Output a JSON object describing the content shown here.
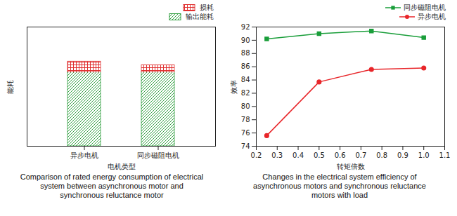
{
  "chart_data": [
    {
      "type": "bar",
      "stacked": true,
      "title": "Comparison of rated energy consumption of electrical system between asynchronous motor and synchronous reluctance motor",
      "xlabel": "电机类型",
      "ylabel": "能耗",
      "categories": [
        "异步电机",
        "同步磁阻电机"
      ],
      "series": [
        {
          "name": "输出能耗",
          "color": "#2e9e3e",
          "values": [
            62,
            62
          ]
        },
        {
          "name": "损耗",
          "color": "#e03030",
          "values": [
            9,
            6
          ]
        }
      ],
      "ylim": [
        0,
        100
      ],
      "tick_labels": "x",
      "legend": "top-right"
    },
    {
      "type": "line",
      "title": "Changes in the electrical system efficiency of asynchronous motors and synchronous reluctance motors with load",
      "xlabel": "转矩倍数",
      "ylabel": "效率",
      "x": [
        0.25,
        0.5,
        0.75,
        1
      ],
      "series": [
        {
          "name": "同步磁阻电机",
          "color": "#1a9e3a",
          "marker": "square",
          "values": [
            90.2,
            91.0,
            91.4,
            90.4
          ]
        },
        {
          "name": "异步电机",
          "color": "#e8262a",
          "marker": "circle",
          "values": [
            75.6,
            83.7,
            85.6,
            85.8
          ]
        }
      ],
      "xlim": [
        0.2,
        1.1
      ],
      "xticks": [
        0.2,
        0.3,
        0.4,
        0.5,
        0.6,
        0.7,
        0.8,
        0.9,
        {
          "value": 1,
          "label": "1.0"
        },
        1.1
      ],
      "ylim": [
        74,
        92
      ],
      "yticks": [
        74,
        76,
        78,
        80,
        82,
        84,
        86,
        88,
        90,
        92
      ],
      "legend": "top-right"
    }
  ]
}
